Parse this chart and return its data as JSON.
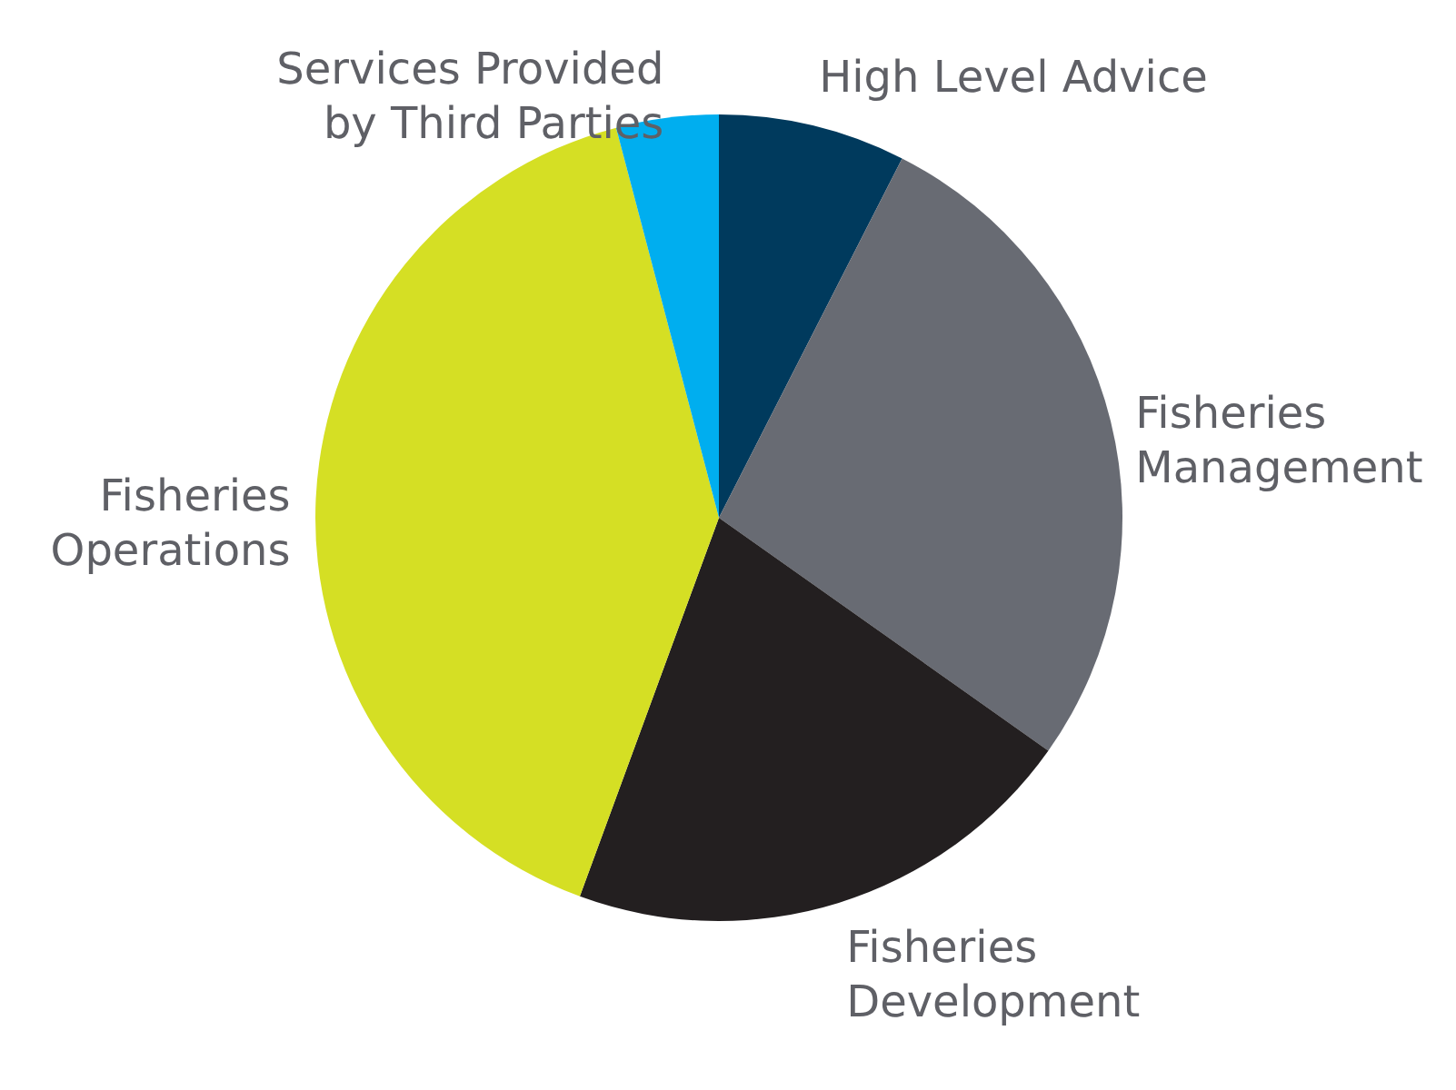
{
  "chart_data": {
    "type": "pie",
    "categories": [
      "High Level Advice",
      "Fisheries\nManagement",
      "Fisheries\nDevelopment",
      "Fisheries\nOperations",
      "Services Provided\nby Third Parties"
    ],
    "values": [
      7.5,
      27.3,
      20.8,
      40.3,
      4.1
    ],
    "colors": [
      "#003a5d",
      "#686b73",
      "#231f20",
      "#d5df24",
      "#00aeef"
    ],
    "legend": false
  }
}
